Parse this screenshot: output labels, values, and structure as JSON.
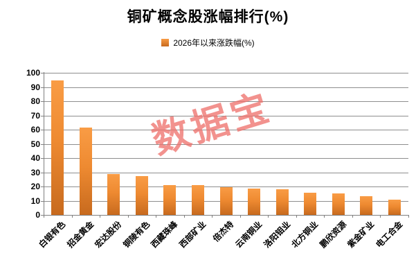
{
  "chart_data": {
    "type": "bar",
    "title": "铜矿概念股涨幅排行(%)",
    "legend": "2026年以来涨跌幅(%)",
    "legend_position": "top",
    "watermark": "数据宝",
    "categories": [
      "白银有色",
      "招金黄金",
      "宏达股份",
      "铜陵有色",
      "西藏珠峰",
      "西部矿业",
      "倍杰特",
      "云南铜业",
      "洛阳钼业",
      "北方铜业",
      "鹏欣资源",
      "紫金矿业",
      "电工合金"
    ],
    "values": [
      94.6,
      61.3,
      28.8,
      27.3,
      21.0,
      20.8,
      19.7,
      18.4,
      17.9,
      15.5,
      15.0,
      13.2,
      10.6
    ],
    "xlabel": "",
    "ylabel": "",
    "ylim": [
      0,
      100
    ],
    "ytick_step": 10,
    "grid": true,
    "colors": {
      "bar_gradient_top": "#F99C45",
      "bar_gradient_mid": "#EE8A31",
      "bar_gradient_bottom": "#C76A1E",
      "legend_swatch": "#E87A28",
      "gridline": "#8E8E8E",
      "axis": "#7F7F7F",
      "text": "#000000",
      "watermark": "#EE6E69"
    }
  }
}
